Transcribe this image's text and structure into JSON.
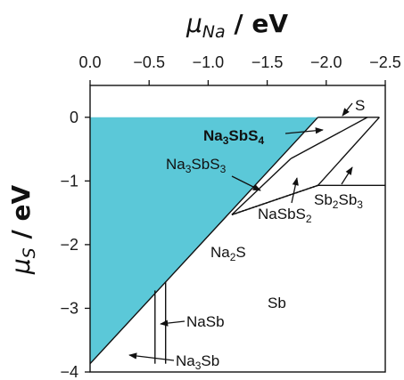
{
  "chart_data": {
    "type": "area",
    "title": "",
    "xlabel_mu": "μ",
    "xlabel_sub": "Na",
    "xlabel_unit": " / eV",
    "ylabel_mu": "μ",
    "ylabel_sub": "S",
    "ylabel_unit": " / eV",
    "xlim": [
      0.0,
      -2.5
    ],
    "ylim": [
      -4,
      0.5
    ],
    "x_ticks": [
      "0.0",
      "−0.5",
      "−1.0",
      "−1.5",
      "−2.0",
      "−2.5"
    ],
    "x_tick_values": [
      0.0,
      -0.5,
      -1.0,
      -1.5,
      -2.0,
      -2.5
    ],
    "y_ticks": [
      "0",
      "−1",
      "−2",
      "−3",
      "−4"
    ],
    "y_tick_values": [
      0,
      -1,
      -2,
      -3,
      -4
    ],
    "fill_color": "#5bc8d8",
    "shaded_region": [
      [
        0.0,
        0.0
      ],
      [
        -1.93,
        0.0
      ],
      [
        0.0,
        -3.87
      ]
    ],
    "boundary_lines": [
      {
        "id": "na2s-boundary",
        "points": [
          [
            0.0,
            -3.87
          ],
          [
            -1.93,
            0.0
          ]
        ]
      },
      {
        "id": "s-top",
        "points": [
          [
            -1.93,
            0.0
          ],
          [
            -2.45,
            0.0
          ]
        ]
      },
      {
        "id": "sb2sb3-right",
        "points": [
          [
            -2.45,
            0.0
          ],
          [
            -1.93,
            -1.07
          ]
        ]
      },
      {
        "id": "na3sbs4-line",
        "points": [
          [
            -2.35,
            0.0
          ],
          [
            -1.7,
            -0.65
          ]
        ]
      },
      {
        "id": "nasbs2-upper",
        "points": [
          [
            -1.7,
            -0.65
          ],
          [
            -1.2,
            -1.53
          ]
        ]
      },
      {
        "id": "nasbs2-lower",
        "points": [
          [
            -1.2,
            -1.53
          ],
          [
            -1.93,
            -1.07
          ]
        ]
      },
      {
        "id": "sb2sb3-bottom",
        "points": [
          [
            -1.93,
            -1.07
          ],
          [
            -2.5,
            -1.07
          ]
        ]
      },
      {
        "id": "nasb-left",
        "points": [
          [
            -0.55,
            -3.87
          ],
          [
            -0.55,
            -2.72
          ]
        ]
      },
      {
        "id": "nasb-right",
        "points": [
          [
            -0.64,
            -3.87
          ],
          [
            -0.64,
            -2.58
          ]
        ]
      }
    ],
    "dotted_lines": [
      {
        "id": "na3sbs3-dotted",
        "points": [
          [
            -1.93,
            -1.07
          ],
          [
            -1.2,
            -1.53
          ]
        ]
      }
    ],
    "labels": {
      "S": "S",
      "Na3SbS4_main": "Na",
      "Na3SbS4_sub1": "3",
      "Na3SbS4_mid": "SbS",
      "Na3SbS4_sub2": "4",
      "Na3SbS3_main": "Na",
      "Na3SbS3_sub1": "3",
      "Na3SbS3_mid": "SbS",
      "Na3SbS3_sub2": "3",
      "NaSbS2_main": "NaSbS",
      "NaSbS2_sub": "2",
      "Sb2Sb3_main": "Sb",
      "Sb2Sb3_sub1": "2",
      "Sb2Sb3_mid": "Sb",
      "Sb2Sb3_sub2": "3",
      "Na2S_main": "Na",
      "Na2S_sub": "2",
      "Na2S_end": "S",
      "Sb": "Sb",
      "NaSb": "NaSb",
      "Na3Sb_main": "Na",
      "Na3Sb_sub": "3",
      "Na3Sb_end": "Sb"
    }
  }
}
